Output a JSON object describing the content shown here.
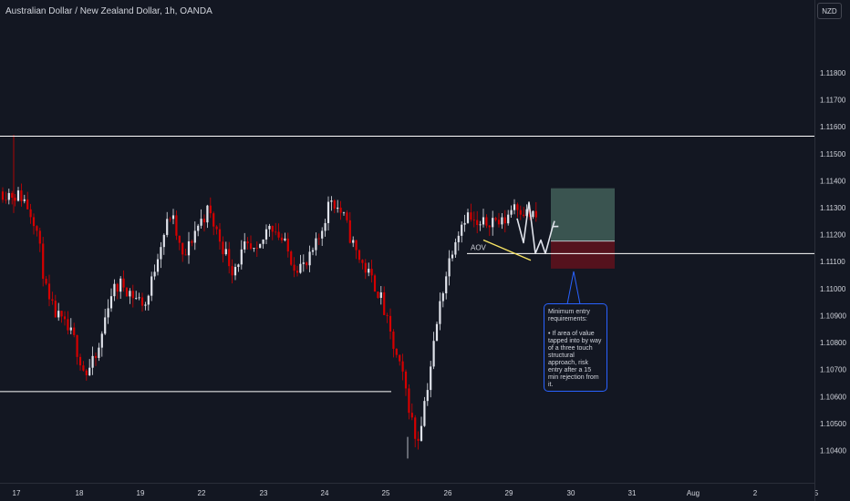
{
  "header": {
    "title": "Australian Dollar / New Zealand Dollar, 1h, OANDA"
  },
  "price_axis": {
    "currency": "NZD"
  },
  "annotation": {
    "heading": "Minimum entry requirements:",
    "body": "• If area of value tapped into by way of a three touch structural approach, risk entry after a 15 min rejection from it."
  },
  "colors": {
    "background": "#131722",
    "up": "#e0e3eb",
    "down": "#d50000",
    "target_zone": "#3a5450",
    "stop_zone": "#55121d"
  },
  "chart_data": {
    "type": "candlestick",
    "title": "Australian Dollar / New Zealand Dollar, 1h, OANDA",
    "x_ticks": [
      "17",
      "18",
      "19",
      "22",
      "23",
      "24",
      "25",
      "26",
      "29",
      "30",
      "31",
      "Aug",
      "2",
      "5"
    ],
    "y_ticks": [
      1.118,
      1.117,
      1.116,
      1.115,
      1.114,
      1.113,
      1.112,
      1.111,
      1.11,
      1.109,
      1.108,
      1.107,
      1.106,
      1.105,
      1.104
    ],
    "y_range": [
      1.1028,
      1.1207
    ],
    "levels": [
      {
        "name": "upper-resistance",
        "price": 1.11565,
        "from": "17",
        "to": "5"
      },
      {
        "name": "lower-support",
        "price": 1.10618,
        "from": "17",
        "to": "25"
      },
      {
        "name": "entry-line",
        "price": 1.1113,
        "from": "26",
        "to": "5"
      }
    ],
    "series": [
      {
        "name": "price",
        "points": [
          [
            "17",
            1.1134
          ],
          [
            "17",
            1.1125
          ],
          [
            "17",
            1.1095
          ],
          [
            "17",
            1.1088
          ],
          [
            "17",
            1.1082
          ],
          [
            "18",
            1.1068
          ],
          [
            "18",
            1.1075
          ],
          [
            "18",
            1.1098
          ],
          [
            "18",
            1.1102
          ],
          [
            "18",
            1.1097
          ],
          [
            "19",
            1.1094
          ],
          [
            "19",
            1.1115
          ],
          [
            "19",
            1.1128
          ],
          [
            "19",
            1.111
          ],
          [
            "19",
            1.1122
          ],
          [
            "22",
            1.1129
          ],
          [
            "22",
            1.1118
          ],
          [
            "22",
            1.1107
          ],
          [
            "22",
            1.1115
          ],
          [
            "22",
            1.1112
          ],
          [
            "23",
            1.1125
          ],
          [
            "23",
            1.1118
          ],
          [
            "23",
            1.1109
          ],
          [
            "23",
            1.1108
          ],
          [
            "23",
            1.1118
          ],
          [
            "24",
            1.1134
          ],
          [
            "24",
            1.1127
          ],
          [
            "24",
            1.1114
          ],
          [
            "24",
            1.1106
          ],
          [
            "24",
            1.1098
          ],
          [
            "25",
            1.108
          ],
          [
            "25",
            1.1065
          ],
          [
            "25",
            1.1042
          ],
          [
            "25",
            1.1068
          ],
          [
            "25",
            1.1098
          ],
          [
            "26",
            1.1118
          ],
          [
            "26",
            1.1128
          ],
          [
            "26",
            1.1122
          ],
          [
            "26",
            1.1126
          ],
          [
            "26",
            1.1124
          ],
          [
            "29",
            1.1132
          ],
          [
            "29",
            1.1128
          ],
          [
            "29",
            1.1126
          ]
        ]
      }
    ],
    "projection": [
      1.1126,
      1.1117,
      1.1132,
      1.1113,
      1.1118,
      1.1113,
      1.1123
    ],
    "zones": [
      {
        "name": "target",
        "from_price": 1.11176,
        "to_price": 1.11372
      },
      {
        "name": "stop",
        "from_price": 1.11074,
        "to_price": 1.11176
      }
    ],
    "labels": [
      {
        "text": "AOV",
        "price": 1.1115
      }
    ],
    "grid": false,
    "legend": "none"
  }
}
